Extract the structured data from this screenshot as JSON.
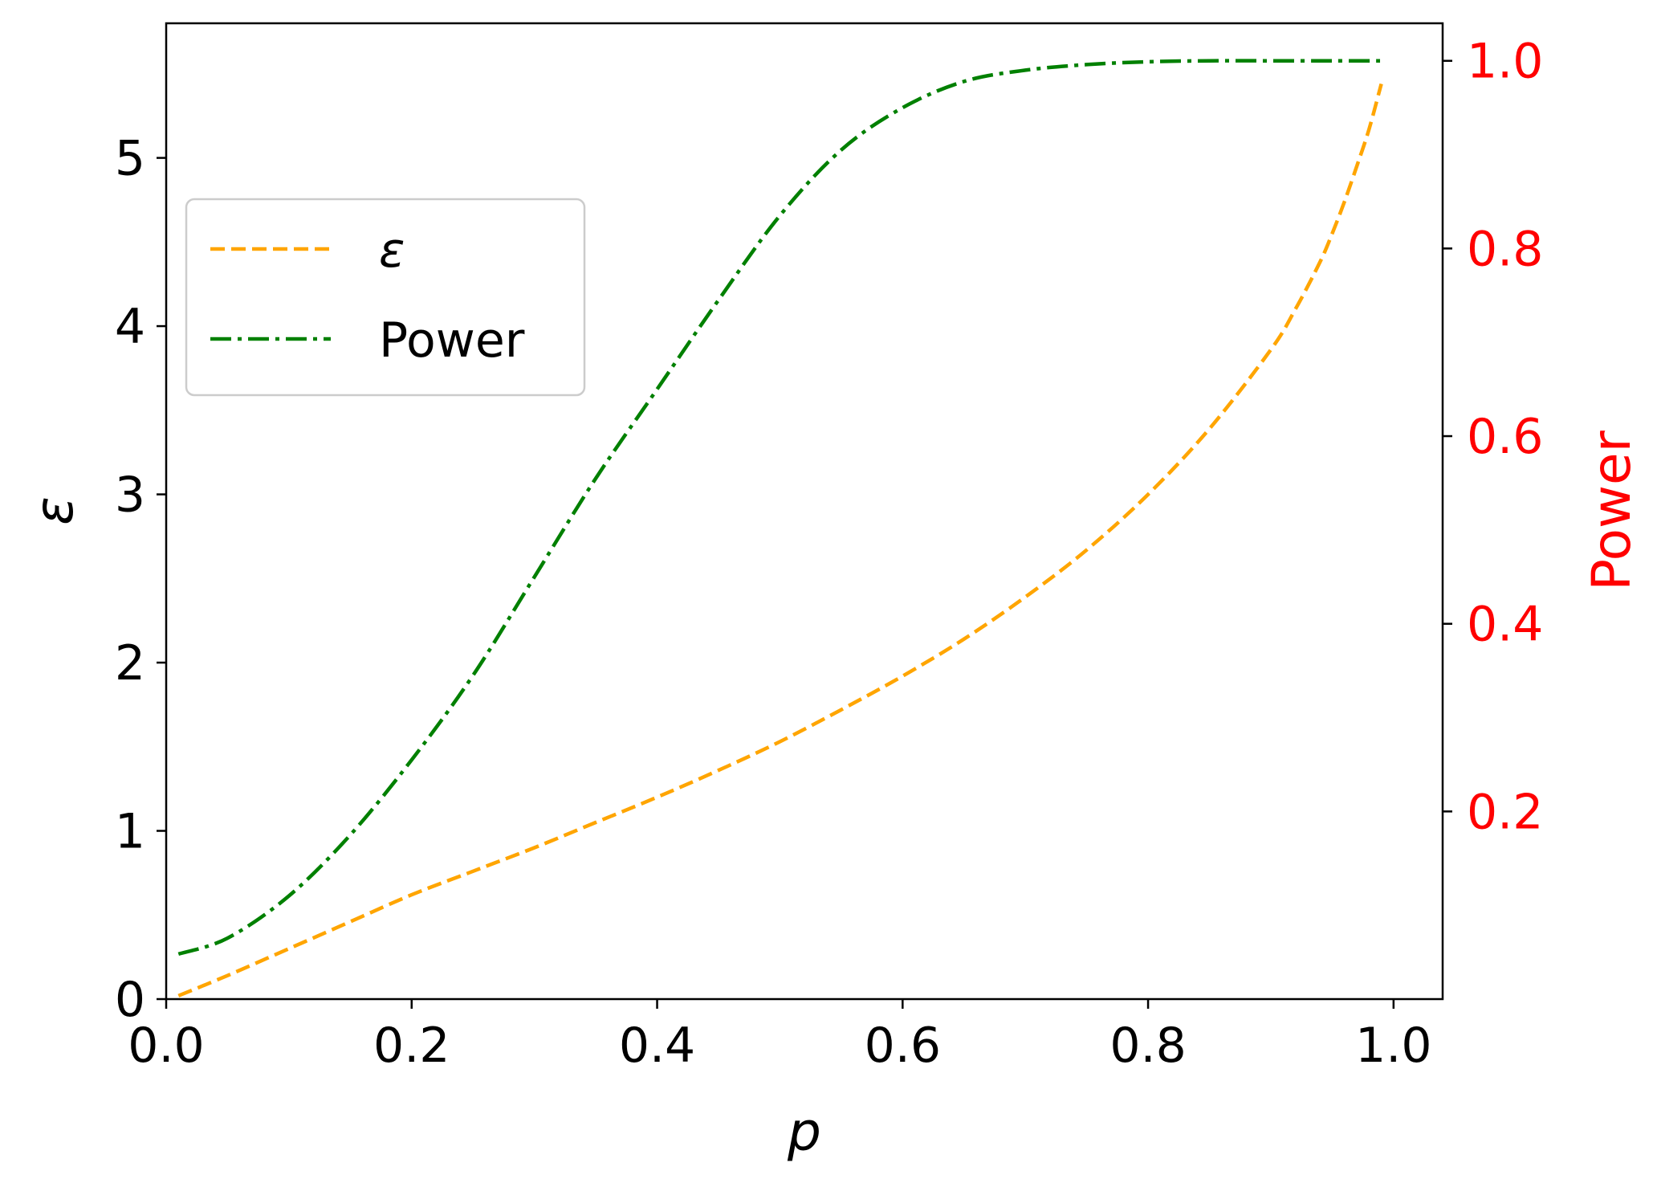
{
  "chart_data": {
    "type": "line",
    "title": "",
    "xlabel": "p",
    "ylabel_left": "ε",
    "ylabel_right": "Power",
    "xlim": [
      0.0,
      1.04
    ],
    "ylim_left": [
      0,
      5.8
    ],
    "ylim_right": [
      0.0,
      1.04
    ],
    "x_ticks": [
      "0.0",
      "0.2",
      "0.4",
      "0.6",
      "0.8",
      "1.0"
    ],
    "y_left_ticks": [
      "0",
      "1",
      "2",
      "3",
      "4",
      "5"
    ],
    "y_right_ticks": [
      "0.2",
      "0.4",
      "0.6",
      "0.8",
      "1.0"
    ],
    "grid": false,
    "legend_position": "upper-left",
    "colors": {
      "epsilon": "#FFA500",
      "power": "#008000",
      "right_axis": "#FF0000",
      "axes": "#000000"
    },
    "series": [
      {
        "name": "ε",
        "axis": "left",
        "style": "dashed",
        "x": [
          0.01,
          0.05,
          0.1,
          0.15,
          0.2,
          0.25,
          0.3,
          0.35,
          0.4,
          0.45,
          0.5,
          0.55,
          0.6,
          0.65,
          0.7,
          0.75,
          0.8,
          0.85,
          0.9,
          0.92,
          0.94,
          0.95,
          0.96,
          0.97,
          0.98,
          0.99
        ],
        "y": [
          0.02,
          0.14,
          0.3,
          0.46,
          0.62,
          0.76,
          0.9,
          1.05,
          1.2,
          1.36,
          1.53,
          1.72,
          1.92,
          2.14,
          2.39,
          2.67,
          3.0,
          3.39,
          3.86,
          4.1,
          4.38,
          4.55,
          4.74,
          4.95,
          5.17,
          5.44
        ]
      },
      {
        "name": "Power",
        "axis": "right",
        "style": "dashdot",
        "x": [
          0.01,
          0.05,
          0.1,
          0.15,
          0.2,
          0.25,
          0.3,
          0.35,
          0.4,
          0.45,
          0.5,
          0.55,
          0.6,
          0.65,
          0.7,
          0.75,
          0.8,
          0.85,
          0.9,
          0.95,
          0.99
        ],
        "y": [
          0.048,
          0.065,
          0.11,
          0.175,
          0.255,
          0.345,
          0.45,
          0.555,
          0.65,
          0.745,
          0.835,
          0.905,
          0.95,
          0.978,
          0.99,
          0.996,
          0.999,
          1.0,
          1.0,
          1.0,
          1.0
        ]
      }
    ]
  }
}
